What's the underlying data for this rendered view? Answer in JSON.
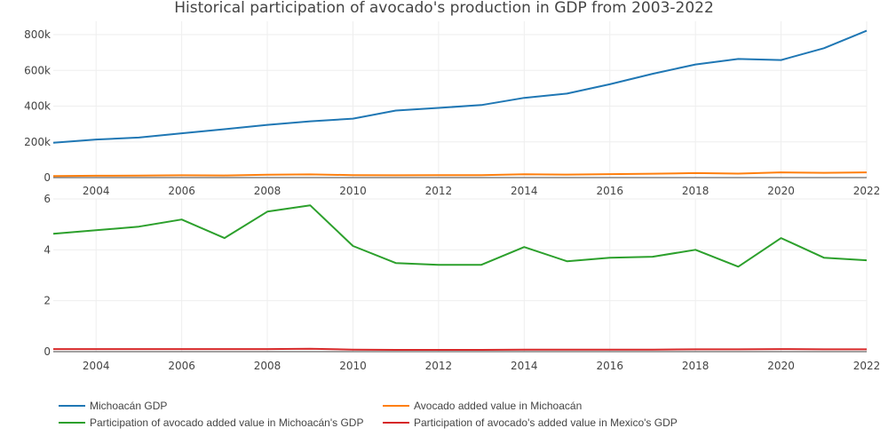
{
  "chart_data": {
    "type": "line",
    "title": "Historical participation of avocado's production in GDP from 2003-2022",
    "x": [
      2003,
      2004,
      2005,
      2006,
      2007,
      2008,
      2009,
      2010,
      2011,
      2012,
      2013,
      2014,
      2015,
      2016,
      2017,
      2018,
      2019,
      2020,
      2021,
      2022
    ],
    "subplots": [
      {
        "id": "top",
        "ylim": [
          0,
          860000
        ],
        "yticks": [
          0,
          200000,
          400000,
          600000,
          800000
        ],
        "ytick_labels": [
          "0",
          "200k",
          "400k",
          "600k",
          "800k"
        ],
        "xticks": [
          2004,
          2006,
          2008,
          2010,
          2012,
          2014,
          2016,
          2018,
          2020,
          2022
        ],
        "xtick_labels": [
          "2004",
          "2006",
          "2008",
          "2010",
          "2012",
          "2014",
          "2016",
          "2018",
          "2020",
          "2022"
        ],
        "series": [
          {
            "name": "Michoacán GDP",
            "color": "#1f77b4",
            "values": [
              195000,
              213000,
              224000,
              248000,
              271000,
              295000,
              315000,
              330000,
              375000,
              390000,
              406000,
              446000,
              470000,
              522000,
              581000,
              633000,
              664000,
              658000,
              724000,
              822000
            ]
          },
          {
            "name": "Avocado added value in Michoacán",
            "color": "#ff7f0e",
            "values": [
              9000,
              10200,
              11000,
              12800,
              12100,
              16200,
              18100,
              13700,
              13000,
              13300,
              13900,
              18300,
              16700,
              19300,
              21700,
              25300,
              22200,
              29300,
              26700,
              29500
            ]
          }
        ]
      },
      {
        "id": "bottom",
        "ylim": [
          0,
          6
        ],
        "yticks": [
          0,
          2,
          4,
          6
        ],
        "ytick_labels": [
          "0",
          "2",
          "4",
          "6"
        ],
        "xticks": [
          2004,
          2006,
          2008,
          2010,
          2012,
          2014,
          2016,
          2018,
          2020,
          2022
        ],
        "xtick_labels": [
          "2004",
          "2006",
          "2008",
          "2010",
          "2012",
          "2014",
          "2016",
          "2018",
          "2020",
          "2022"
        ],
        "series": [
          {
            "name": "Participation of avocado added value in Michoacán's GDP",
            "color": "#2ca02c",
            "values": [
              4.63,
              4.77,
              4.91,
              5.19,
              4.46,
              5.5,
              5.75,
              4.15,
              3.48,
              3.41,
              3.41,
              4.11,
              3.55,
              3.69,
              3.73,
              4.0,
              3.34,
              4.46,
              3.69,
              3.59
            ]
          },
          {
            "name": "Participation of avocado's added value in Mexico's GDP",
            "color": "#d62728",
            "values": [
              0.1,
              0.1,
              0.1,
              0.1,
              0.1,
              0.1,
              0.11,
              0.08,
              0.07,
              0.07,
              0.07,
              0.08,
              0.08,
              0.08,
              0.08,
              0.09,
              0.09,
              0.1,
              0.09,
              0.09
            ]
          }
        ]
      }
    ],
    "legend": [
      {
        "label": "Michoacán GDP",
        "color": "#1f77b4"
      },
      {
        "label": "Avocado added value in Michoacán",
        "color": "#ff7f0e"
      },
      {
        "label": "Participation of avocado added value in Michoacán's GDP",
        "color": "#2ca02c"
      },
      {
        "label": "Participation of avocado's added value in Mexico's GDP",
        "color": "#d62728"
      }
    ],
    "legend_position": "bottom-left",
    "grid": true
  }
}
